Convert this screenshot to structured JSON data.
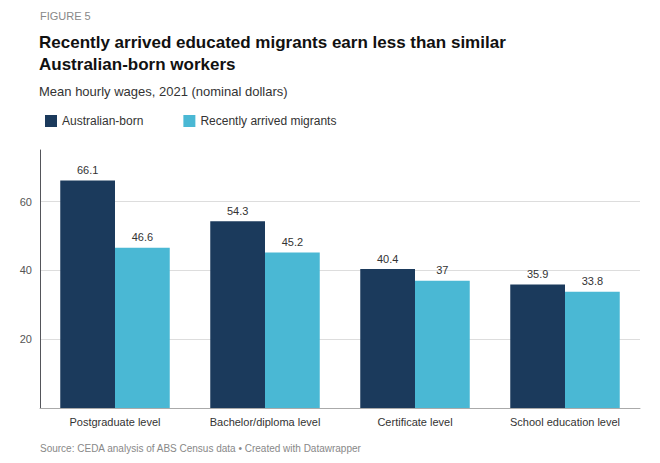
{
  "chart_data": {
    "type": "bar",
    "title": "Recently arrived educated migrants earn less than similar\nAustralian-born workers",
    "subtitle": "Mean hourly wages, 2021 (nominal dollars)",
    "annotations": [
      "FIGURE 5",
      "Source: CEDA analysis of ABS Census data • Created with Datawrapper"
    ],
    "categories": [
      "Postgraduate level",
      "Bachelor/diploma level",
      "Certificate level",
      "School education level"
    ],
    "series": [
      {
        "name": "Australian-born",
        "color": "#1b3a5c",
        "values": [
          66.1,
          54.3,
          40.4,
          35.9
        ]
      },
      {
        "name": "Recently arrived migrants",
        "color": "#4ab8d4",
        "values": [
          46.6,
          45.2,
          37.0,
          33.8
        ]
      }
    ],
    "ylim": [
      0,
      75
    ],
    "yticks": [
      20,
      40,
      60
    ],
    "grid": true,
    "legend": "top",
    "data_labels": true
  }
}
